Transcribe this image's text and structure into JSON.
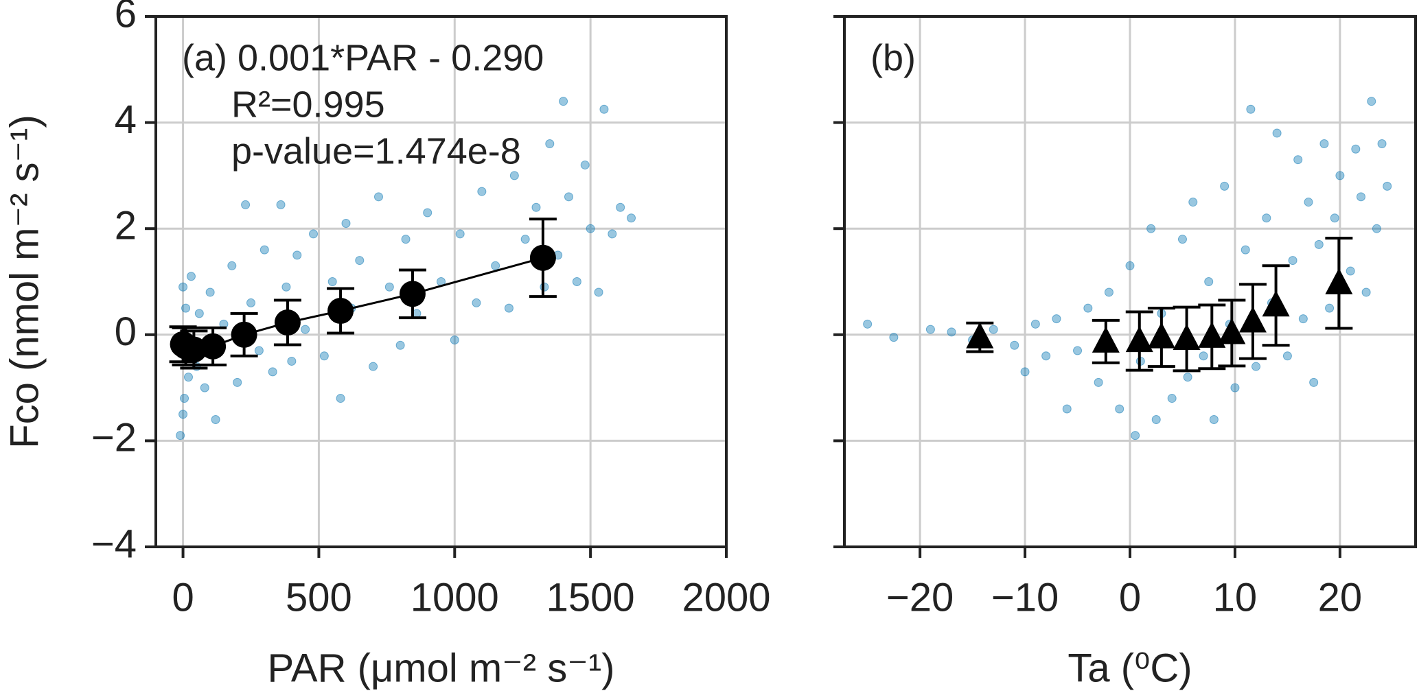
{
  "chart_data": [
    {
      "type": "scatter",
      "annotations": [
        "(a) 0.001*PAR - 0.290",
        "R²=0.995",
        "p-value=1.474e-8"
      ],
      "x_label": "PAR (μmol m⁻² s⁻¹)",
      "y_label": "Fco (nmol m⁻² s⁻¹)",
      "xlim": [
        -100,
        2000
      ],
      "xticks": [
        0,
        500,
        1000,
        1500,
        2000
      ],
      "ylim": [
        -4,
        6
      ],
      "yticks": [
        {
          "value": -4,
          "label": "−4"
        },
        {
          "value": -2,
          "label": "−2"
        },
        0,
        2,
        4,
        6
      ],
      "show_ytick_labels": true,
      "grid": true,
      "series": [
        {
          "color": "#0072b2",
          "marker": "dot",
          "x": [
            -10,
            0,
            0,
            5,
            10,
            20,
            30,
            50,
            60,
            80,
            100,
            120,
            150,
            180,
            200,
            230,
            250,
            280,
            300,
            330,
            360,
            380,
            400,
            420,
            450,
            480,
            520,
            550,
            580,
            600,
            620,
            650,
            700,
            720,
            760,
            800,
            820,
            860,
            900,
            950,
            1000,
            1020,
            1080,
            1100,
            1150,
            1200,
            1220,
            1260,
            1300,
            1330,
            1350,
            1380,
            1400,
            1420,
            1450,
            1480,
            1500,
            1530,
            1550,
            1580,
            1610,
            1650
          ],
          "values": [
            -1.9,
            -1.5,
            0.9,
            -1.2,
            0.5,
            -0.8,
            1.1,
            -0.6,
            0.4,
            -1.0,
            0.8,
            -1.6,
            0.2,
            1.3,
            -0.9,
            2.45,
            0.6,
            -0.3,
            1.6,
            -0.7,
            2.45,
            0.9,
            -0.5,
            1.5,
            0.1,
            1.9,
            -0.4,
            1.0,
            -1.2,
            2.1,
            0.5,
            1.4,
            -0.6,
            2.6,
            0.9,
            -0.2,
            1.8,
            0.4,
            2.3,
            1.0,
            -0.1,
            1.9,
            0.6,
            2.7,
            1.3,
            0.5,
            3.0,
            1.8,
            2.4,
            0.9,
            3.6,
            1.5,
            4.4,
            2.6,
            1.0,
            3.2,
            2.0,
            0.8,
            4.25,
            1.9,
            2.4,
            2.2
          ]
        },
        {
          "color": "#000000",
          "marker": "circle",
          "line": true,
          "x": [
            0,
            10,
            40,
            110,
            225,
            385,
            580,
            845,
            1325
          ],
          "values": [
            -0.18,
            -0.22,
            -0.28,
            -0.22,
            0.0,
            0.23,
            0.45,
            0.77,
            1.45
          ],
          "errors": [
            0.33,
            0.35,
            0.35,
            0.35,
            0.4,
            0.42,
            0.42,
            0.45,
            0.73
          ]
        }
      ]
    },
    {
      "type": "scatter",
      "annotations": [
        "(b)"
      ],
      "x_label": "Ta (⁰C)",
      "xlim": [
        -27.2,
        27.2
      ],
      "xticks": [
        {
          "value": -20,
          "label": "−20"
        },
        {
          "value": -10,
          "label": "−10"
        },
        0,
        10,
        20
      ],
      "ylim": [
        -4,
        6
      ],
      "yticks": [
        -4,
        -2,
        0,
        2,
        4,
        6
      ],
      "show_ytick_labels": false,
      "grid": true,
      "series": [
        {
          "color": "#0072b2",
          "marker": "dot",
          "x": [
            -25,
            -22.5,
            -19,
            -17,
            -15,
            -13,
            -11,
            -10,
            -9,
            -8,
            -7,
            -6,
            -5,
            -4,
            -3,
            -2,
            -1,
            0,
            0.5,
            1,
            2,
            2.5,
            3,
            4,
            5,
            5.5,
            6,
            7,
            7.5,
            8,
            9,
            9.5,
            10,
            11,
            11.5,
            12,
            13,
            13.5,
            14,
            15,
            15.5,
            16,
            16.5,
            17,
            17.5,
            18,
            18.5,
            19,
            19.5,
            20,
            21,
            21.5,
            22,
            22.5,
            23,
            23.5,
            24,
            24.5
          ],
          "values": [
            0.2,
            -0.05,
            0.1,
            0.05,
            -0.1,
            0.1,
            -0.2,
            -0.7,
            0.2,
            -0.4,
            0.3,
            -1.4,
            -0.3,
            0.5,
            -0.9,
            0.8,
            -1.4,
            1.3,
            -1.9,
            -0.5,
            2.0,
            -1.6,
            0.4,
            -1.2,
            1.8,
            -0.8,
            2.5,
            -0.4,
            1.0,
            -1.6,
            2.8,
            0.2,
            -1.0,
            1.6,
            4.25,
            -0.6,
            2.2,
            0.6,
            3.8,
            -0.4,
            1.4,
            3.3,
            0.3,
            2.5,
            -0.9,
            1.7,
            3.6,
            0.5,
            2.2,
            3.0,
            1.2,
            3.5,
            2.6,
            0.8,
            4.4,
            2.0,
            3.6,
            2.8
          ]
        },
        {
          "color": "#000000",
          "marker": "triangle",
          "x": [
            -14.3,
            -2.3,
            0.9,
            3,
            5.4,
            7.8,
            9.7,
            11.7,
            13.9,
            19.9
          ],
          "values": [
            -0.05,
            -0.13,
            -0.12,
            -0.05,
            -0.08,
            -0.04,
            0.03,
            0.25,
            0.55,
            0.97
          ],
          "errors": [
            0.27,
            0.4,
            0.55,
            0.55,
            0.6,
            0.6,
            0.62,
            0.7,
            0.75,
            0.85
          ]
        }
      ]
    }
  ]
}
